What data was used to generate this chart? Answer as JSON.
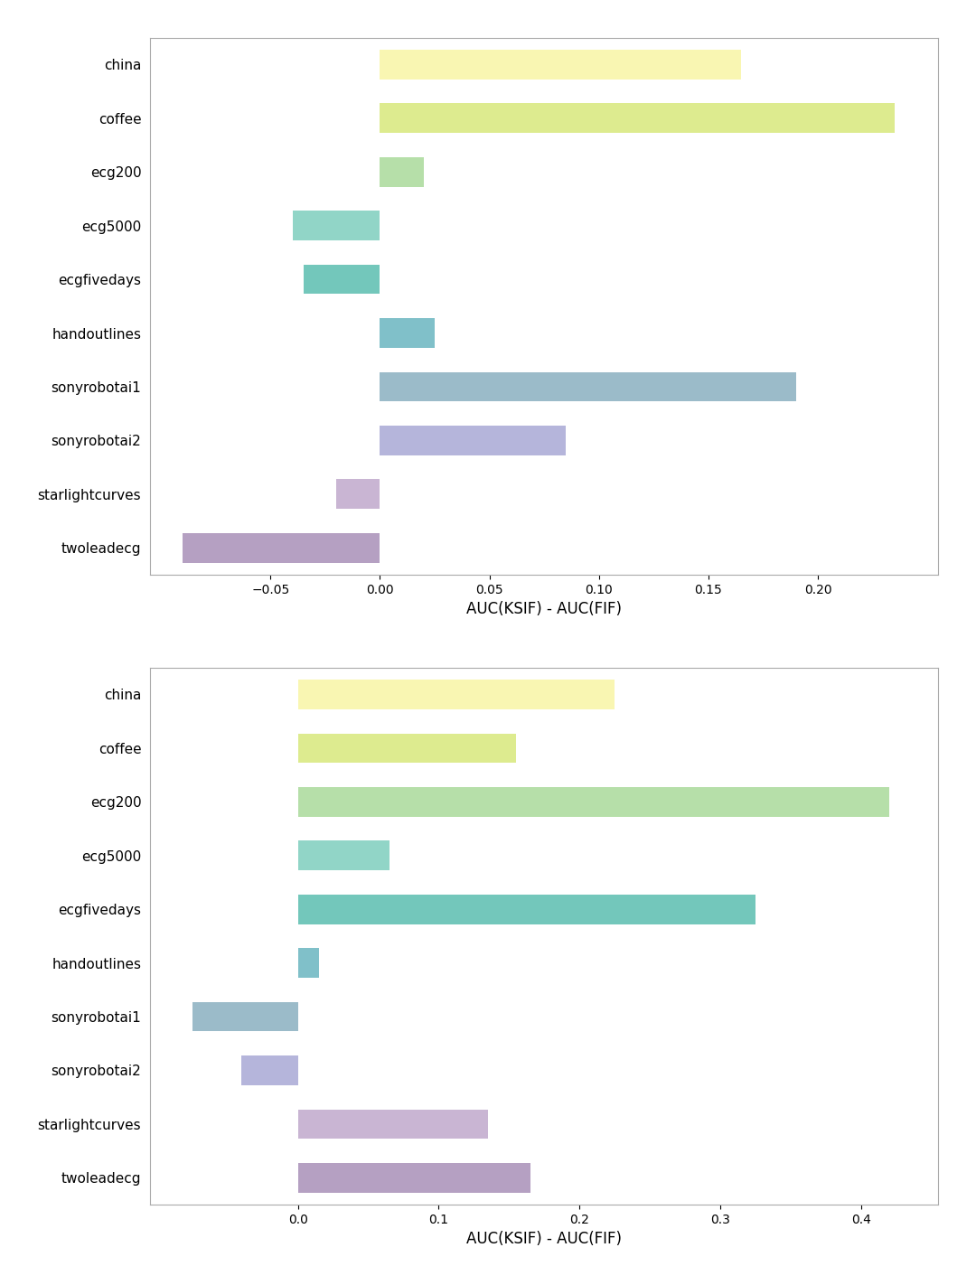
{
  "categories": [
    "china",
    "coffee",
    "ecg200",
    "ecg5000",
    "ecgfivedays",
    "handoutlines",
    "sonyrobotai1",
    "sonyrobotai2",
    "starlightcurves",
    "twoleadecg"
  ],
  "top": {
    "values": [
      0.165,
      0.235,
      0.02,
      -0.04,
      -0.035,
      0.025,
      0.19,
      0.085,
      -0.02,
      -0.09
    ],
    "xlim": [
      -0.105,
      0.255
    ],
    "xticks": [
      -0.05,
      0.0,
      0.05,
      0.1,
      0.15,
      0.2
    ],
    "xlabel": "AUC(KSIF) - AUC(FIF)"
  },
  "bottom": {
    "values": [
      0.225,
      0.155,
      0.42,
      0.065,
      0.325,
      0.015,
      -0.075,
      -0.04,
      0.135,
      0.165
    ],
    "xlim": [
      -0.105,
      0.455
    ],
    "xticks": [
      0.0,
      0.1,
      0.2,
      0.3,
      0.4
    ],
    "xlabel": "AUC(KSIF) - AUC(FIF)"
  },
  "colors": [
    "#f9f5a5",
    "#d8e87c",
    "#aada9a",
    "#7ecebe",
    "#5bbdb0",
    "#6ab5c0",
    "#8aafc0",
    "#a8a8d5",
    "#c0a8cc",
    "#a890b8"
  ],
  "background_color": "#ffffff",
  "bar_height": 0.55,
  "figsize": [
    10.8,
    14.22
  ],
  "dpi": 100
}
